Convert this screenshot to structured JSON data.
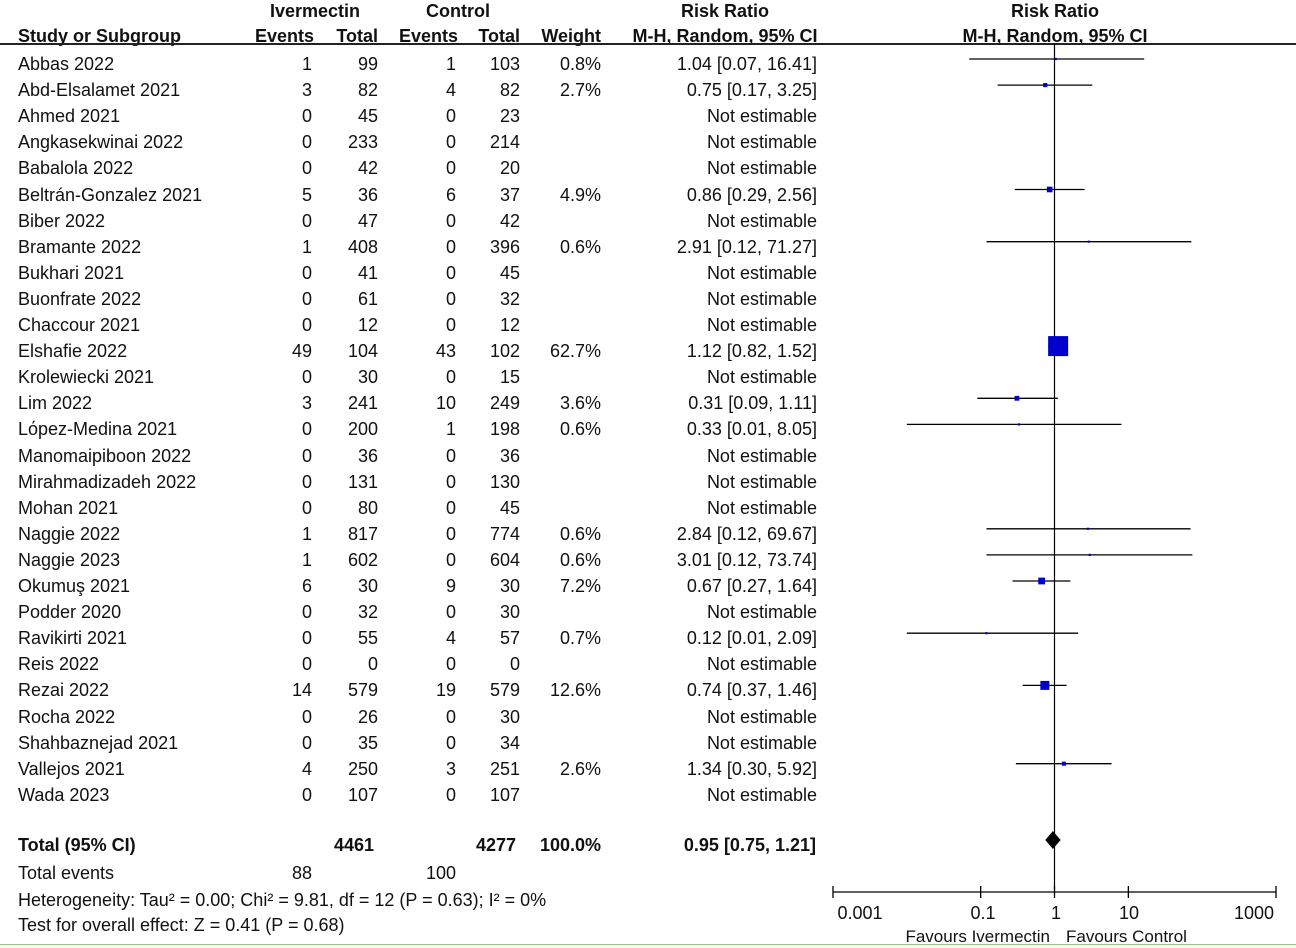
{
  "headers": {
    "group_ivermectin": "Ivermectin",
    "group_control": "Control",
    "rr_text": "Risk Ratio",
    "rr_plot": "Risk Ratio",
    "study": "Study or Subgroup",
    "iv_events": "Events",
    "iv_total": "Total",
    "ct_events": "Events",
    "ct_total": "Total",
    "weight": "Weight",
    "method_text": "M-H, Random, 95% CI",
    "method_plot": "M-H, Random, 95% CI"
  },
  "studies": [
    {
      "name": "Abbas 2022",
      "ie": "1",
      "it": "99",
      "ce": "1",
      "ct": "103",
      "weight": "0.8%",
      "ci_text": "1.04 [0.07, 16.41]"
    },
    {
      "name": "Abd-Elsalamet 2021",
      "ie": "3",
      "it": "82",
      "ce": "4",
      "ct": "82",
      "weight": "2.7%",
      "ci_text": "0.75 [0.17, 3.25]"
    },
    {
      "name": "Ahmed 2021",
      "ie": "0",
      "it": "45",
      "ce": "0",
      "ct": "23",
      "weight": "",
      "ci_text": "Not estimable"
    },
    {
      "name": "Angkasekwinai 2022",
      "ie": "0",
      "it": "233",
      "ce": "0",
      "ct": "214",
      "weight": "",
      "ci_text": "Not estimable"
    },
    {
      "name": "Babalola 2022",
      "ie": "0",
      "it": "42",
      "ce": "0",
      "ct": "20",
      "weight": "",
      "ci_text": "Not estimable"
    },
    {
      "name": "Beltrán-Gonzalez 2021",
      "ie": "5",
      "it": "36",
      "ce": "6",
      "ct": "37",
      "weight": "4.9%",
      "ci_text": "0.86 [0.29, 2.56]"
    },
    {
      "name": "Biber 2022",
      "ie": "0",
      "it": "47",
      "ce": "0",
      "ct": "42",
      "weight": "",
      "ci_text": "Not estimable"
    },
    {
      "name": "Bramante 2022",
      "ie": "1",
      "it": "408",
      "ce": "0",
      "ct": "396",
      "weight": "0.6%",
      "ci_text": "2.91 [0.12, 71.27]"
    },
    {
      "name": "Bukhari 2021",
      "ie": "0",
      "it": "41",
      "ce": "0",
      "ct": "45",
      "weight": "",
      "ci_text": "Not estimable"
    },
    {
      "name": "Buonfrate 2022",
      "ie": "0",
      "it": "61",
      "ce": "0",
      "ct": "32",
      "weight": "",
      "ci_text": "Not estimable"
    },
    {
      "name": "Chaccour 2021",
      "ie": "0",
      "it": "12",
      "ce": "0",
      "ct": "12",
      "weight": "",
      "ci_text": "Not estimable"
    },
    {
      "name": "Elshafie 2022",
      "ie": "49",
      "it": "104",
      "ce": "43",
      "ct": "102",
      "weight": "62.7%",
      "ci_text": "1.12 [0.82, 1.52]"
    },
    {
      "name": "Krolewiecki 2021",
      "ie": "0",
      "it": "30",
      "ce": "0",
      "ct": "15",
      "weight": "",
      "ci_text": "Not estimable"
    },
    {
      "name": "Lim 2022",
      "ie": "3",
      "it": "241",
      "ce": "10",
      "ct": "249",
      "weight": "3.6%",
      "ci_text": "0.31 [0.09, 1.11]"
    },
    {
      "name": "Lόpez-Medina 2021",
      "ie": "0",
      "it": "200",
      "ce": "1",
      "ct": "198",
      "weight": "0.6%",
      "ci_text": "0.33 [0.01, 8.05]"
    },
    {
      "name": "Manomaipiboon 2022",
      "ie": "0",
      "it": "36",
      "ce": "0",
      "ct": "36",
      "weight": "",
      "ci_text": "Not estimable"
    },
    {
      "name": "Mirahmadizadeh 2022",
      "ie": "0",
      "it": "131",
      "ce": "0",
      "ct": "130",
      "weight": "",
      "ci_text": "Not estimable"
    },
    {
      "name": "Mohan 2021",
      "ie": "0",
      "it": "80",
      "ce": "0",
      "ct": "45",
      "weight": "",
      "ci_text": "Not estimable"
    },
    {
      "name": "Naggie 2022",
      "ie": "1",
      "it": "817",
      "ce": "0",
      "ct": "774",
      "weight": "0.6%",
      "ci_text": "2.84 [0.12, 69.67]"
    },
    {
      "name": "Naggie 2023",
      "ie": "1",
      "it": "602",
      "ce": "0",
      "ct": "604",
      "weight": "0.6%",
      "ci_text": "3.01 [0.12, 73.74]"
    },
    {
      "name": "Okumuş 2021",
      "ie": "6",
      "it": "30",
      "ce": "9",
      "ct": "30",
      "weight": "7.2%",
      "ci_text": "0.67 [0.27, 1.64]"
    },
    {
      "name": "Podder 2020",
      "ie": "0",
      "it": "32",
      "ce": "0",
      "ct": "30",
      "weight": "",
      "ci_text": "Not estimable"
    },
    {
      "name": "Ravikirti 2021",
      "ie": "0",
      "it": "55",
      "ce": "4",
      "ct": "57",
      "weight": "0.7%",
      "ci_text": "0.12 [0.01, 2.09]"
    },
    {
      "name": "Reis 2022",
      "ie": "0",
      "it": "0",
      "ce": "0",
      "ct": "0",
      "weight": "",
      "ci_text": "Not estimable"
    },
    {
      "name": "Rezai 2022",
      "ie": "14",
      "it": "579",
      "ce": "19",
      "ct": "579",
      "weight": "12.6%",
      "ci_text": "0.74 [0.37, 1.46]"
    },
    {
      "name": "Rocha 2022",
      "ie": "0",
      "it": "26",
      "ce": "0",
      "ct": "30",
      "weight": "",
      "ci_text": "Not estimable"
    },
    {
      "name": "Shahbaznejad 2021",
      "ie": "0",
      "it": "35",
      "ce": "0",
      "ct": "34",
      "weight": "",
      "ci_text": "Not estimable"
    },
    {
      "name": "Vallejos 2021",
      "ie": "4",
      "it": "250",
      "ce": "3",
      "ct": "251",
      "weight": "2.6%",
      "ci_text": "1.34 [0.30, 5.92]"
    },
    {
      "name": "Wada 2023",
      "ie": "0",
      "it": "107",
      "ce": "0",
      "ct": "107",
      "weight": "",
      "ci_text": "Not estimable"
    }
  ],
  "total": {
    "label": "Total (95% CI)",
    "it": "4461",
    "ct": "4277",
    "weight": "100.0%",
    "ci_text": "0.95 [0.75, 1.21]"
  },
  "total_events": {
    "label": "Total events",
    "ie": "88",
    "ce": "100"
  },
  "heterogeneity": "Heterogeneity: Tau² = 0.00; Chi² = 9.81, df = 12 (P = 0.63); I² = 0%",
  "overall_effect": "Test for overall effect: Z = 0.41 (P = 0.68)",
  "axis": {
    "tick_labels": [
      "0.001",
      "0.1",
      "1",
      "10",
      "1000"
    ],
    "favours_left": "Favours Ivermectin",
    "favours_right": "Favours Control"
  },
  "chart_data": {
    "type": "scatter",
    "scale": "log",
    "xlim": [
      0.001,
      1000
    ],
    "x_ticks": [
      0.001,
      0.1,
      1,
      10,
      1000
    ],
    "reference_line": 1,
    "points": [
      {
        "study": "Abbas 2022",
        "rr": 1.04,
        "lo": 0.07,
        "hi": 16.41,
        "weight": 0.8
      },
      {
        "study": "Abd-Elsalamet 2021",
        "rr": 0.75,
        "lo": 0.17,
        "hi": 3.25,
        "weight": 2.7
      },
      {
        "study": "Ahmed 2021",
        "rr": null
      },
      {
        "study": "Angkasekwinai 2022",
        "rr": null
      },
      {
        "study": "Babalola 2022",
        "rr": null
      },
      {
        "study": "Beltrán-Gonzalez 2021",
        "rr": 0.86,
        "lo": 0.29,
        "hi": 2.56,
        "weight": 4.9
      },
      {
        "study": "Biber 2022",
        "rr": null
      },
      {
        "study": "Bramante 2022",
        "rr": 2.91,
        "lo": 0.12,
        "hi": 71.27,
        "weight": 0.6
      },
      {
        "study": "Bukhari 2021",
        "rr": null
      },
      {
        "study": "Buonfrate 2022",
        "rr": null
      },
      {
        "study": "Chaccour 2021",
        "rr": null
      },
      {
        "study": "Elshafie 2022",
        "rr": 1.12,
        "lo": 0.82,
        "hi": 1.52,
        "weight": 62.7
      },
      {
        "study": "Krolewiecki 2021",
        "rr": null
      },
      {
        "study": "Lim 2022",
        "rr": 0.31,
        "lo": 0.09,
        "hi": 1.11,
        "weight": 3.6
      },
      {
        "study": "Lόpez-Medina 2021",
        "rr": 0.33,
        "lo": 0.01,
        "hi": 8.05,
        "weight": 0.6
      },
      {
        "study": "Manomaipiboon 2022",
        "rr": null
      },
      {
        "study": "Mirahmadizadeh 2022",
        "rr": null
      },
      {
        "study": "Mohan 2021",
        "rr": null
      },
      {
        "study": "Naggie 2022",
        "rr": 2.84,
        "lo": 0.12,
        "hi": 69.67,
        "weight": 0.6
      },
      {
        "study": "Naggie 2023",
        "rr": 3.01,
        "lo": 0.12,
        "hi": 73.74,
        "weight": 0.6
      },
      {
        "study": "Okumuş 2021",
        "rr": 0.67,
        "lo": 0.27,
        "hi": 1.64,
        "weight": 7.2
      },
      {
        "study": "Podder 2020",
        "rr": null
      },
      {
        "study": "Ravikirti 2021",
        "rr": 0.12,
        "lo": 0.01,
        "hi": 2.09,
        "weight": 0.7
      },
      {
        "study": "Reis 2022",
        "rr": null
      },
      {
        "study": "Rezai 2022",
        "rr": 0.74,
        "lo": 0.37,
        "hi": 1.46,
        "weight": 12.6
      },
      {
        "study": "Rocha 2022",
        "rr": null
      },
      {
        "study": "Shahbaznejad 2021",
        "rr": null
      },
      {
        "study": "Vallejos 2021",
        "rr": 1.34,
        "lo": 0.3,
        "hi": 5.92,
        "weight": 2.6
      },
      {
        "study": "Wada 2023",
        "rr": null
      }
    ],
    "summary": {
      "rr": 0.95,
      "lo": 0.75,
      "hi": 1.21
    },
    "colors": {
      "square": "#0000cc",
      "diamond": "#000000",
      "line": "#000000"
    }
  }
}
